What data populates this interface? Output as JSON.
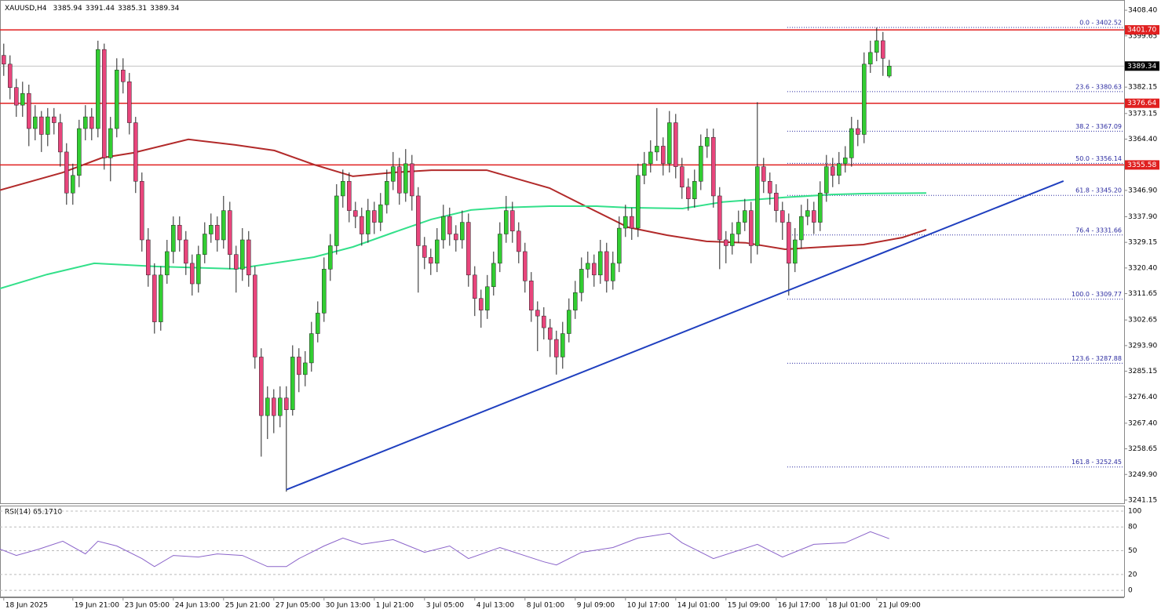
{
  "chart_data": [
    {
      "type": "candlestick",
      "symbol": "XAUUSD,H4",
      "xlim": [
        -0.6,
        178.4
      ],
      "ylim": [
        3239.8,
        3411.9
      ],
      "up_color": "#32cd32",
      "down_color": "#e8457c",
      "yticks": [
        {
          "value": 3408.4,
          "label": "3408.40"
        },
        {
          "value": 3399.65,
          "label": "3399.65"
        },
        {
          "value": 3382.15,
          "label": "3382.15"
        },
        {
          "value": 3373.15,
          "label": "3373.15"
        },
        {
          "value": 3364.4,
          "label": "3364.40"
        },
        {
          "value": 3346.9,
          "label": "3346.90"
        },
        {
          "value": 3337.9,
          "label": "3337.90"
        },
        {
          "value": 3329.15,
          "label": "3329.15"
        },
        {
          "value": 3320.4,
          "label": "3320.40"
        },
        {
          "value": 3311.65,
          "label": "3311.65"
        },
        {
          "value": 3302.65,
          "label": "3302.65"
        },
        {
          "value": 3293.9,
          "label": "3293.90"
        },
        {
          "value": 3285.15,
          "label": "3285.15"
        },
        {
          "value": 3276.4,
          "label": "3276.40"
        },
        {
          "value": 3267.4,
          "label": "3267.40"
        },
        {
          "value": 3258.65,
          "label": "3258.65"
        },
        {
          "value": 3249.9,
          "label": "3249.90"
        },
        {
          "value": 3241.15,
          "label": "3241.15"
        }
      ],
      "xticks": [
        {
          "value": 0,
          "label": "18 Jun 2025"
        },
        {
          "value": 11,
          "label": "19 Jun 21:00"
        },
        {
          "value": 19,
          "label": "23 Jun 05:00"
        },
        {
          "value": 27,
          "label": "24 Jun 13:00"
        },
        {
          "value": 35,
          "label": "25 Jun 21:00"
        },
        {
          "value": 43,
          "label": "27 Jun 05:00"
        },
        {
          "value": 51,
          "label": "30 Jun 13:00"
        },
        {
          "value": 59,
          "label": "1 Jul 21:00"
        },
        {
          "value": 67,
          "label": "3 Jul 05:00"
        },
        {
          "value": 75,
          "label": "4 Jul 13:00"
        },
        {
          "value": 83,
          "label": "8 Jul 01:00"
        },
        {
          "value": 91,
          "label": "9 Jul 09:00"
        },
        {
          "value": 99,
          "label": "10 Jul 17:00"
        },
        {
          "value": 107,
          "label": "14 Jul 01:00"
        },
        {
          "value": 115,
          "label": "15 Jul 09:00"
        },
        {
          "value": 123,
          "label": "16 Jul 17:00"
        },
        {
          "value": 131,
          "label": "18 Jul 01:00"
        },
        {
          "value": 139,
          "label": "21 Jul 09:00"
        }
      ],
      "candles": [
        [
          3393,
          3397,
          3386,
          3390
        ],
        [
          3390,
          3393,
          3378,
          3382
        ],
        [
          3382,
          3385,
          3372,
          3376
        ],
        [
          3376,
          3384,
          3372,
          3380
        ],
        [
          3380,
          3383,
          3362,
          3368
        ],
        [
          3368,
          3376,
          3364,
          3372
        ],
        [
          3372,
          3374,
          3360,
          3366
        ],
        [
          3366,
          3375,
          3362,
          3372
        ],
        [
          3372,
          3375,
          3366,
          3370
        ],
        [
          3370,
          3373,
          3355,
          3360
        ],
        [
          3360,
          3363,
          3342,
          3346
        ],
        [
          3346,
          3356,
          3342,
          3352
        ],
        [
          3352,
          3371,
          3348,
          3368
        ],
        [
          3368,
          3376,
          3364,
          3372
        ],
        [
          3372,
          3375,
          3364,
          3368
        ],
        [
          3368,
          3398,
          3365,
          3395
        ],
        [
          3395,
          3397,
          3354,
          3358
        ],
        [
          3358,
          3372,
          3350,
          3368
        ],
        [
          3368,
          3392,
          3365,
          3388
        ],
        [
          3388,
          3392,
          3380,
          3384
        ],
        [
          3384,
          3387,
          3366,
          3370
        ],
        [
          3370,
          3372,
          3346,
          3350
        ],
        [
          3350,
          3353,
          3326,
          3330
        ],
        [
          3330,
          3334,
          3314,
          3318
        ],
        [
          3318,
          3322,
          3298,
          3302
        ],
        [
          3302,
          3321,
          3299,
          3318
        ],
        [
          3318,
          3330,
          3315,
          3326
        ],
        [
          3326,
          3338,
          3322,
          3335
        ],
        [
          3335,
          3338,
          3326,
          3330
        ],
        [
          3330,
          3333,
          3318,
          3322
        ],
        [
          3322,
          3325,
          3311,
          3315
        ],
        [
          3315,
          3328,
          3312,
          3325
        ],
        [
          3325,
          3336,
          3322,
          3332
        ],
        [
          3332,
          3339,
          3329,
          3335
        ],
        [
          3335,
          3338,
          3326,
          3330
        ],
        [
          3330,
          3345,
          3327,
          3340
        ],
        [
          3340,
          3343,
          3320,
          3325
        ],
        [
          3325,
          3328,
          3312,
          3320
        ],
        [
          3320,
          3334,
          3316,
          3330
        ],
        [
          3330,
          3333,
          3314,
          3318
        ],
        [
          3318,
          3321,
          3286,
          3290
        ],
        [
          3290,
          3293,
          3256,
          3270
        ],
        [
          3270,
          3280,
          3262,
          3276
        ],
        [
          3276,
          3279,
          3264,
          3270
        ],
        [
          3270,
          3280,
          3266,
          3276
        ],
        [
          3276,
          3280,
          3244,
          3272
        ],
        [
          3272,
          3294,
          3270,
          3290
        ],
        [
          3290,
          3293,
          3278,
          3284
        ],
        [
          3284,
          3292,
          3280,
          3288
        ],
        [
          3288,
          3302,
          3285,
          3298
        ],
        [
          3298,
          3309,
          3295,
          3305
        ],
        [
          3305,
          3324,
          3302,
          3320
        ],
        [
          3320,
          3332,
          3316,
          3328
        ],
        [
          3328,
          3349,
          3325,
          3345
        ],
        [
          3345,
          3354,
          3341,
          3350
        ],
        [
          3350,
          3353,
          3336,
          3340
        ],
        [
          3340,
          3343,
          3334,
          3338
        ],
        [
          3338,
          3341,
          3328,
          3332
        ],
        [
          3332,
          3344,
          3329,
          3340
        ],
        [
          3340,
          3343,
          3332,
          3336
        ],
        [
          3336,
          3346,
          3333,
          3342
        ],
        [
          3342,
          3354,
          3339,
          3350
        ],
        [
          3350,
          3360,
          3347,
          3355
        ],
        [
          3355,
          3358,
          3342,
          3346
        ],
        [
          3346,
          3361,
          3343,
          3356
        ],
        [
          3356,
          3359,
          3340,
          3345
        ],
        [
          3345,
          3348,
          3312,
          3328
        ],
        [
          3328,
          3331,
          3320,
          3324
        ],
        [
          3324,
          3327,
          3318,
          3322
        ],
        [
          3322,
          3334,
          3319,
          3330
        ],
        [
          3330,
          3342,
          3327,
          3338
        ],
        [
          3338,
          3341,
          3328,
          3332
        ],
        [
          3332,
          3335,
          3326,
          3330
        ],
        [
          3330,
          3340,
          3327,
          3336
        ],
        [
          3336,
          3339,
          3314,
          3318
        ],
        [
          3318,
          3321,
          3304,
          3310
        ],
        [
          3310,
          3313,
          3300,
          3306
        ],
        [
          3306,
          3318,
          3303,
          3314
        ],
        [
          3314,
          3326,
          3311,
          3322
        ],
        [
          3322,
          3336,
          3319,
          3332
        ],
        [
          3332,
          3345,
          3329,
          3340
        ],
        [
          3340,
          3343,
          3329,
          3333
        ],
        [
          3333,
          3336,
          3322,
          3326
        ],
        [
          3326,
          3329,
          3312,
          3316
        ],
        [
          3316,
          3319,
          3302,
          3306
        ],
        [
          3306,
          3309,
          3292,
          3304
        ],
        [
          3304,
          3307,
          3296,
          3300
        ],
        [
          3300,
          3303,
          3290,
          3296
        ],
        [
          3296,
          3299,
          3284,
          3290
        ],
        [
          3290,
          3302,
          3286,
          3298
        ],
        [
          3298,
          3310,
          3295,
          3306
        ],
        [
          3306,
          3316,
          3303,
          3312
        ],
        [
          3312,
          3324,
          3309,
          3320
        ],
        [
          3320,
          3326,
          3317,
          3322
        ],
        [
          3322,
          3325,
          3314,
          3318
        ],
        [
          3318,
          3330,
          3315,
          3326
        ],
        [
          3326,
          3329,
          3312,
          3316
        ],
        [
          3316,
          3326,
          3313,
          3322
        ],
        [
          3322,
          3338,
          3319,
          3334
        ],
        [
          3334,
          3342,
          3331,
          3338
        ],
        [
          3338,
          3341,
          3330,
          3334
        ],
        [
          3334,
          3356,
          3331,
          3352
        ],
        [
          3352,
          3360,
          3349,
          3356
        ],
        [
          3356,
          3364,
          3353,
          3360
        ],
        [
          3360,
          3375,
          3357,
          3362
        ],
        [
          3362,
          3365,
          3352,
          3356
        ],
        [
          3356,
          3374,
          3353,
          3370
        ],
        [
          3370,
          3373,
          3351,
          3355
        ],
        [
          3355,
          3358,
          3344,
          3348
        ],
        [
          3348,
          3351,
          3340,
          3344
        ],
        [
          3344,
          3354,
          3341,
          3350
        ],
        [
          3350,
          3366,
          3347,
          3362
        ],
        [
          3362,
          3368,
          3358,
          3365
        ],
        [
          3365,
          3368,
          3341,
          3345
        ],
        [
          3345,
          3348,
          3320,
          3330
        ],
        [
          3330,
          3333,
          3322,
          3328
        ],
        [
          3328,
          3336,
          3325,
          3332
        ],
        [
          3332,
          3340,
          3329,
          3336
        ],
        [
          3336,
          3344,
          3333,
          3340
        ],
        [
          3340,
          3343,
          3322,
          3328
        ],
        [
          3328,
          3377,
          3325,
          3355
        ],
        [
          3355,
          3358,
          3346,
          3350
        ],
        [
          3350,
          3353,
          3342,
          3346
        ],
        [
          3346,
          3349,
          3336,
          3340
        ],
        [
          3340,
          3343,
          3330,
          3336
        ],
        [
          3336,
          3339,
          3311,
          3322
        ],
        [
          3322,
          3334,
          3319,
          3330
        ],
        [
          3330,
          3342,
          3327,
          3338
        ],
        [
          3338,
          3344,
          3335,
          3340
        ],
        [
          3340,
          3343,
          3332,
          3336
        ],
        [
          3336,
          3350,
          3333,
          3346
        ],
        [
          3346,
          3359,
          3343,
          3355
        ],
        [
          3355,
          3358,
          3348,
          3352
        ],
        [
          3352,
          3360,
          3349,
          3356
        ],
        [
          3356,
          3362,
          3353,
          3358
        ],
        [
          3358,
          3372,
          3355,
          3368
        ],
        [
          3368,
          3371,
          3362,
          3366
        ],
        [
          3366,
          3394,
          3363,
          3390
        ],
        [
          3390,
          3398,
          3387,
          3394
        ],
        [
          3394,
          3402.5,
          3391,
          3398
        ],
        [
          3398,
          3401,
          3386,
          3392
        ],
        [
          3385.94,
          3391.44,
          3385.31,
          3389.34
        ]
      ],
      "moving_averages": [
        {
          "color": "#b22a2a",
          "x": [
            -0.6,
            9.4,
            15.6,
            20.6,
            29.4,
            36.9,
            43.1,
            49.4,
            55.6,
            61.9,
            68.1,
            76.9,
            86.9,
            93.1,
            99.4,
            105.6,
            111.9,
            118.1,
            124.4,
            130.6,
            136.9,
            143.1,
            146.9
          ],
          "values": [
            3347,
            3353,
            3358,
            3359.7,
            3364.3,
            3362.4,
            3360.5,
            3355.7,
            3351.7,
            3353,
            3353.8,
            3353.8,
            3347.7,
            3341,
            3334.3,
            3331.6,
            3329.5,
            3329,
            3326.8,
            3327.6,
            3328.4,
            3330.8,
            3333.5
          ]
        },
        {
          "color": "#33e08a",
          "x": [
            -0.6,
            6.9,
            14.4,
            24.4,
            36.9,
            49.4,
            55.6,
            61.9,
            68.1,
            74.4,
            79.4,
            86.9,
            94.4,
            99.4,
            108.1,
            114.4,
            124.4,
            131.9,
            136.9,
            146.9
          ],
          "values": [
            3313.4,
            3318.2,
            3322,
            3320.9,
            3320.1,
            3324.1,
            3327.6,
            3332.4,
            3337,
            3340.2,
            3341,
            3341.5,
            3341.5,
            3341,
            3340.7,
            3342.9,
            3344.5,
            3345.5,
            3345.8,
            3346
          ]
        }
      ],
      "trendline": {
        "color": "#1f3fbf",
        "x": [
          45,
          168.75
        ],
        "values": [
          3244.7,
          3350.1
        ]
      },
      "level_color": "#e02020",
      "levels": [
        {
          "value": 3401.7,
          "label": "3401.70"
        },
        {
          "value": 3376.64,
          "label": "3376.64"
        },
        {
          "value": 3355.58,
          "label": "3355.58"
        }
      ],
      "fibonacci_color": "#2a2aa0",
      "fibonacci": [
        {
          "value": 3402.52,
          "label": "0.0 - 3402.52"
        },
        {
          "value": 3380.63,
          "label": "23.6 - 3380.63"
        },
        {
          "value": 3367.09,
          "label": "38.2 - 3367.09"
        },
        {
          "value": 3356.14,
          "label": "50.0 - 3356.14"
        },
        {
          "value": 3345.2,
          "label": "61.8 - 3345.20"
        },
        {
          "value": 3331.66,
          "label": "76.4 - 3331.66"
        },
        {
          "value": 3309.77,
          "label": "100.0 - 3309.77"
        },
        {
          "value": 3287.88,
          "label": "123.6 - 3287.88"
        },
        {
          "value": 3252.45,
          "label": "161.8 - 3252.45"
        }
      ]
    },
    {
      "type": "line",
      "title": "RSI(14) 65.1710",
      "color": "#8a63c9",
      "xlim": [
        -0.6,
        178.4
      ],
      "ylim": [
        -8.8,
        105.9
      ],
      "yticks": [
        100,
        80,
        50,
        20,
        0
      ],
      "x": [
        -0.6,
        2,
        5.6,
        9.4,
        13,
        15,
        18,
        22,
        24,
        27,
        31,
        34,
        38,
        42,
        45,
        47,
        51,
        54,
        57,
        62,
        67,
        71,
        74,
        79,
        86,
        88,
        92,
        97,
        101,
        106,
        108,
        113,
        120,
        124,
        129,
        134,
        138,
        141
      ],
      "values": [
        52,
        44,
        52,
        62,
        46,
        62,
        56,
        40,
        30,
        44,
        42,
        46,
        44,
        30,
        30,
        40,
        56,
        66,
        58,
        64,
        48,
        56,
        40,
        54,
        36,
        32,
        48,
        54,
        66,
        72,
        60,
        40,
        58,
        42,
        58,
        60,
        74,
        65.17
      ]
    }
  ]
}
